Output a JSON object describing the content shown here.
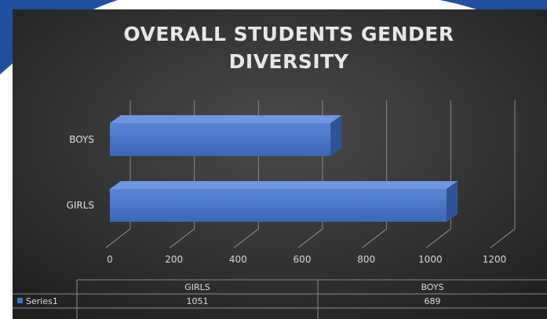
{
  "chart_data": {
    "type": "bar",
    "orientation": "horizontal",
    "title": "OVERALL STUDENTS GENDER DIVERSITY",
    "title_lines": [
      "OVERALL STUDENTS GENDER",
      "DIVERSITY"
    ],
    "categories": [
      "GIRLS",
      "BOYS"
    ],
    "series": [
      {
        "name": "Series1",
        "values": [
          1051,
          689
        ]
      }
    ],
    "xlim": [
      0,
      1200
    ],
    "x_ticks": [
      "0",
      "200",
      "400",
      "600",
      "800",
      "1000",
      "1200"
    ],
    "grid": true,
    "style": "3d",
    "data_table": true,
    "colors": {
      "bar": "#4472c4",
      "background": "#2d2d2d"
    }
  }
}
